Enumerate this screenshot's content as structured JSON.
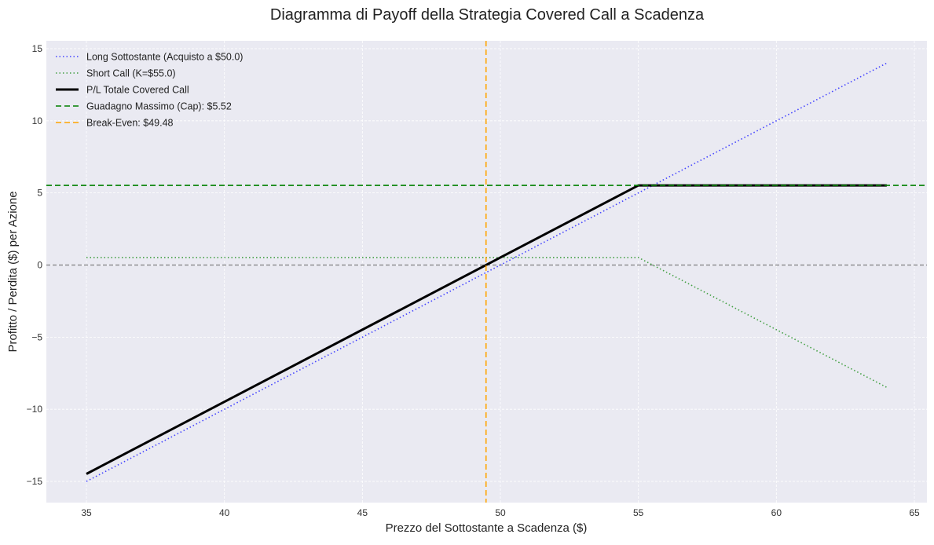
{
  "chart_data": {
    "type": "line",
    "title": "Diagramma di Payoff della Strategia Covered Call a Scadenza",
    "xlabel": "Prezzo del Sottostante a Scadenza ($)",
    "ylabel": "Profitto / Perdita ($) per Azione",
    "xlim": [
      33.5,
      65.5
    ],
    "ylim": [
      -16.5,
      15.5
    ],
    "xticks": [
      35,
      40,
      45,
      50,
      55,
      60,
      65
    ],
    "yticks": [
      -15,
      -10,
      -5,
      0,
      5,
      10,
      15
    ],
    "ytick_labels": [
      "−15",
      "−10",
      "−5",
      "0",
      "5",
      "10",
      "15"
    ],
    "grid": true,
    "legend_position": "upper left",
    "x": [
      35,
      49.48,
      55,
      64
    ],
    "series": [
      {
        "name": "Long Sottostante (Acquisto a $50.0)",
        "style": "dotted",
        "color": "#4444ff",
        "points": [
          [
            35,
            -15.0
          ],
          [
            64,
            14.0
          ]
        ]
      },
      {
        "name": "Short Call (K=$55.0)",
        "style": "dotted",
        "color": "#44a044",
        "points": [
          [
            35,
            0.52
          ],
          [
            55,
            0.52
          ],
          [
            64,
            -8.48
          ]
        ]
      },
      {
        "name": "P/L Totale Covered Call",
        "style": "solid",
        "color": "#000000",
        "points": [
          [
            35,
            -14.48
          ],
          [
            55,
            5.52
          ],
          [
            64,
            5.52
          ]
        ]
      },
      {
        "name": "Guadagno Massimo (Cap): $5.52",
        "style": "dashed",
        "color": "#008000",
        "hline": 5.52
      },
      {
        "name": "Break-Even: $49.48",
        "style": "dashed",
        "color": "#ffa500",
        "vline": 49.48
      }
    ],
    "annotations": [
      {
        "type": "hline",
        "y": 0,
        "style": "dashed",
        "color": "#808080"
      }
    ]
  }
}
